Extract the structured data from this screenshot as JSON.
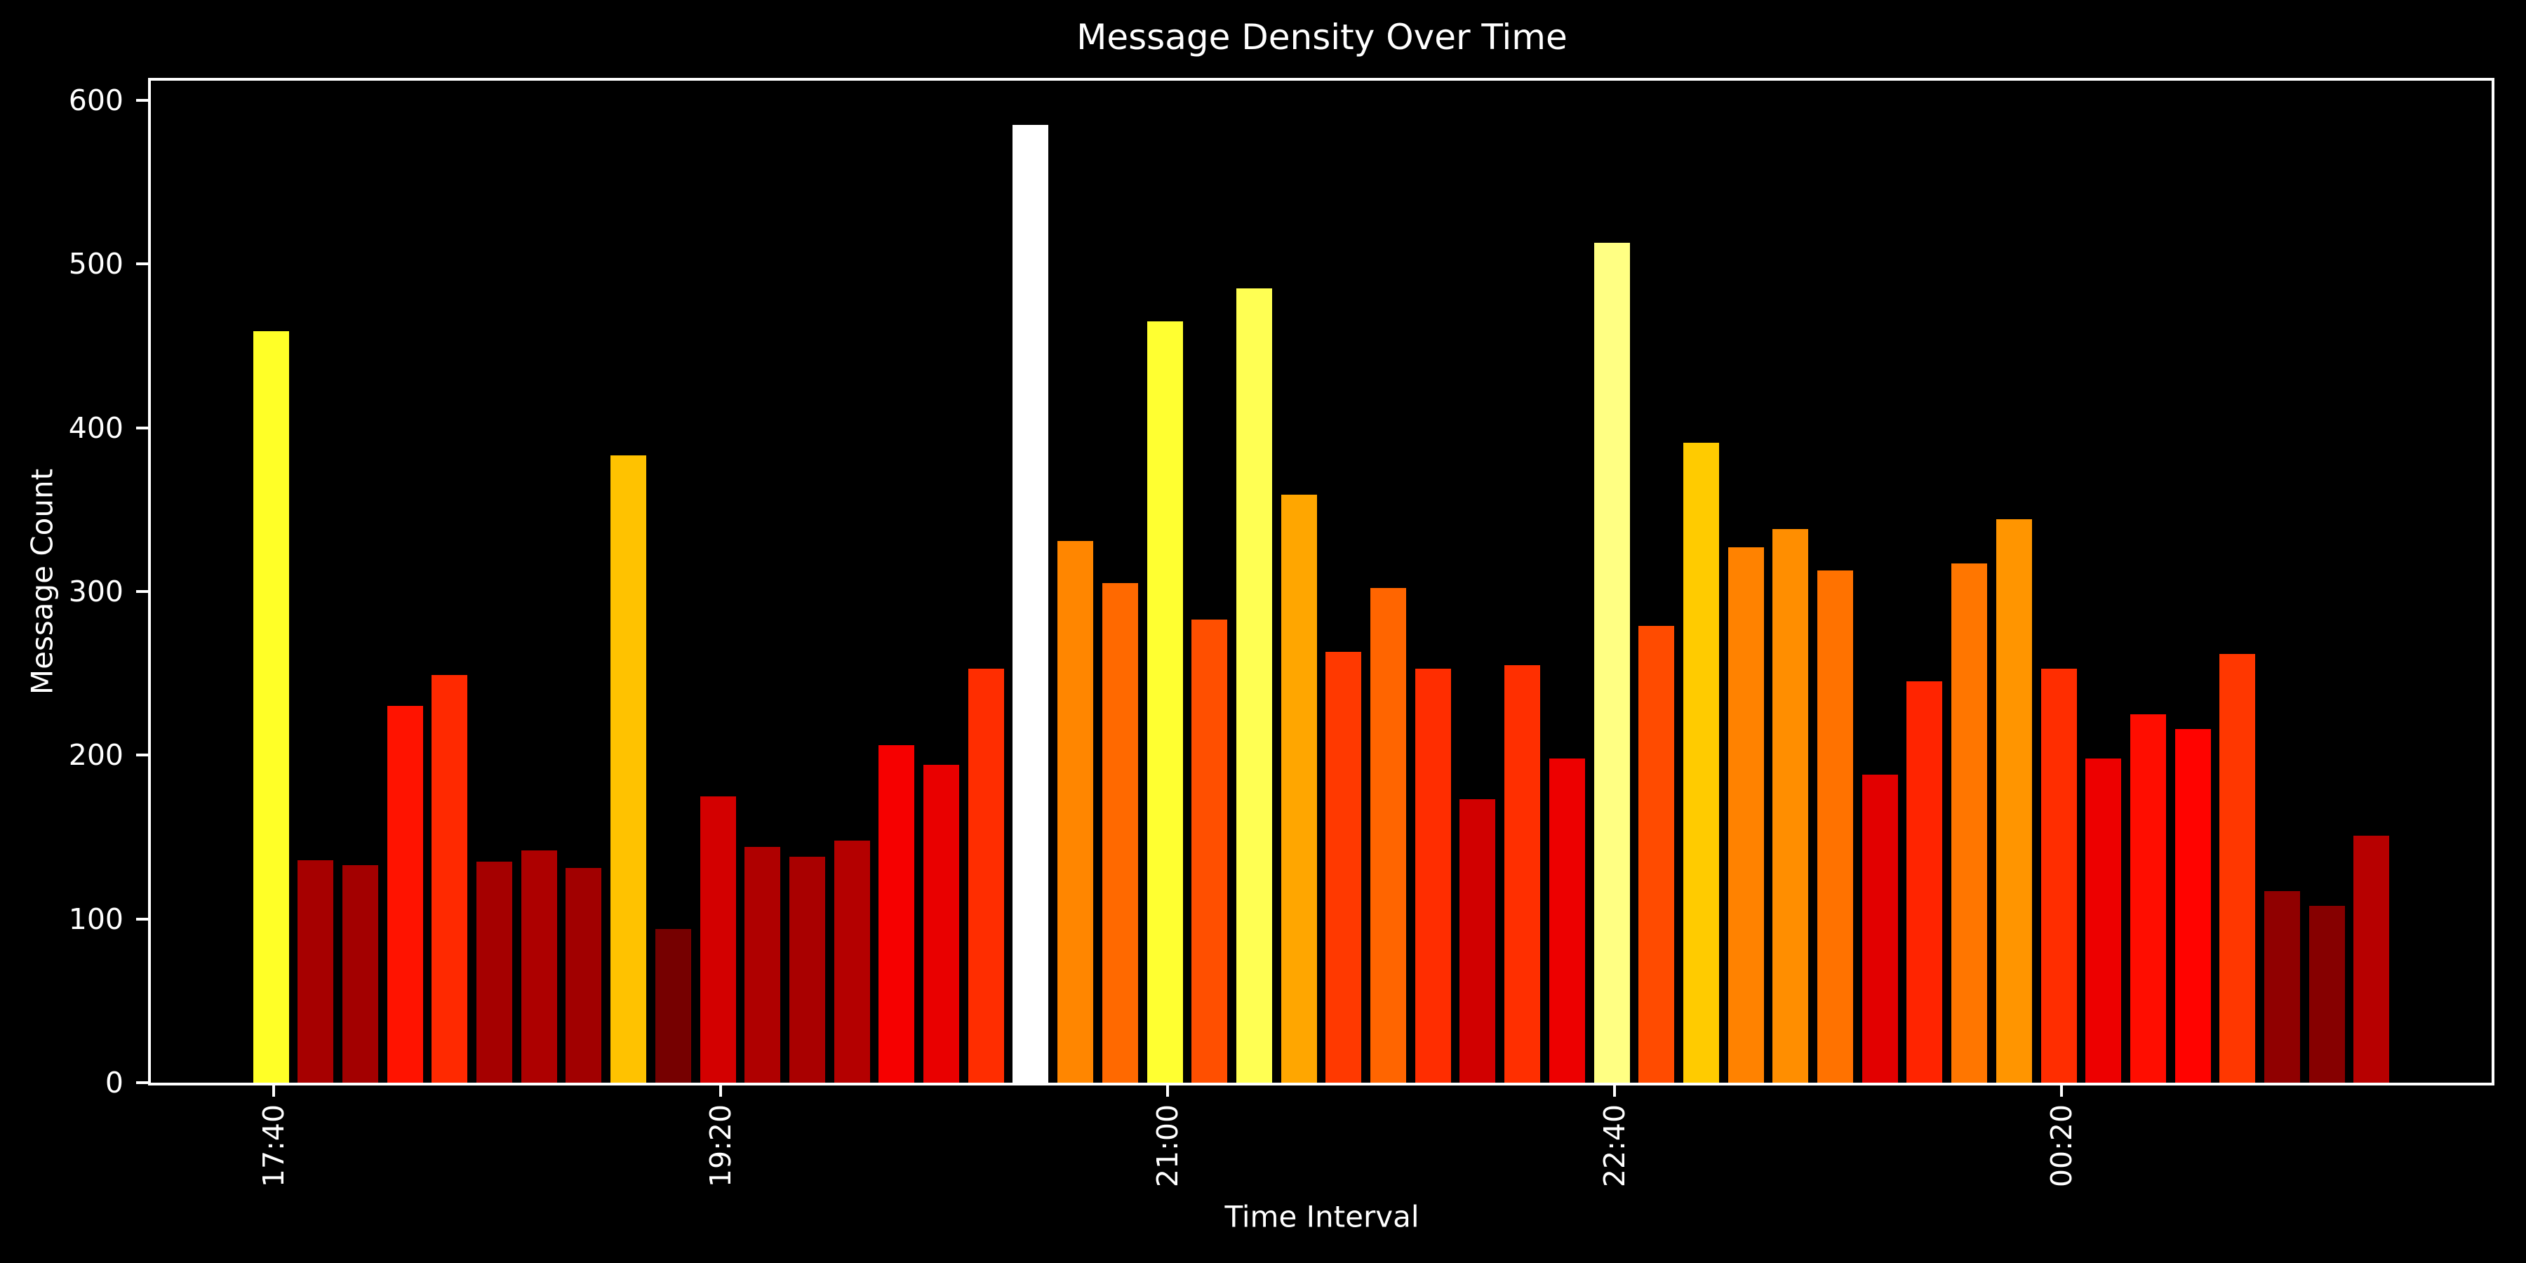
{
  "chart_data": {
    "type": "bar",
    "title": "Message Density Over Time",
    "xlabel": "Time Interval",
    "ylabel": "Message Count",
    "values": [
      459,
      136,
      133,
      230,
      249,
      135,
      142,
      131,
      383,
      94,
      175,
      144,
      138,
      148,
      206,
      194,
      253,
      585,
      331,
      305,
      465,
      283,
      485,
      359,
      263,
      302,
      253,
      173,
      255,
      198,
      513,
      279,
      391,
      327,
      338,
      313,
      188,
      245,
      317,
      344,
      253,
      198,
      225,
      216,
      262,
      117,
      108,
      151
    ],
    "x_tick_positions": [
      0,
      10,
      20,
      30,
      40
    ],
    "x_tick_labels": [
      "17:40",
      "19:20",
      "21:00",
      "22:40",
      "00:20"
    ],
    "x_tick_rotation_deg": 90,
    "y_ticks": [
      0,
      100,
      200,
      300,
      400,
      500,
      600
    ],
    "ylim": [
      0,
      612
    ],
    "colormap": "hot",
    "color_norm": {
      "vmin": 0,
      "vmax": 585
    },
    "background_color": "#000000",
    "text_color": "#ffffff",
    "axis_color": "#ffffff",
    "grid": "off",
    "legend": "none"
  }
}
